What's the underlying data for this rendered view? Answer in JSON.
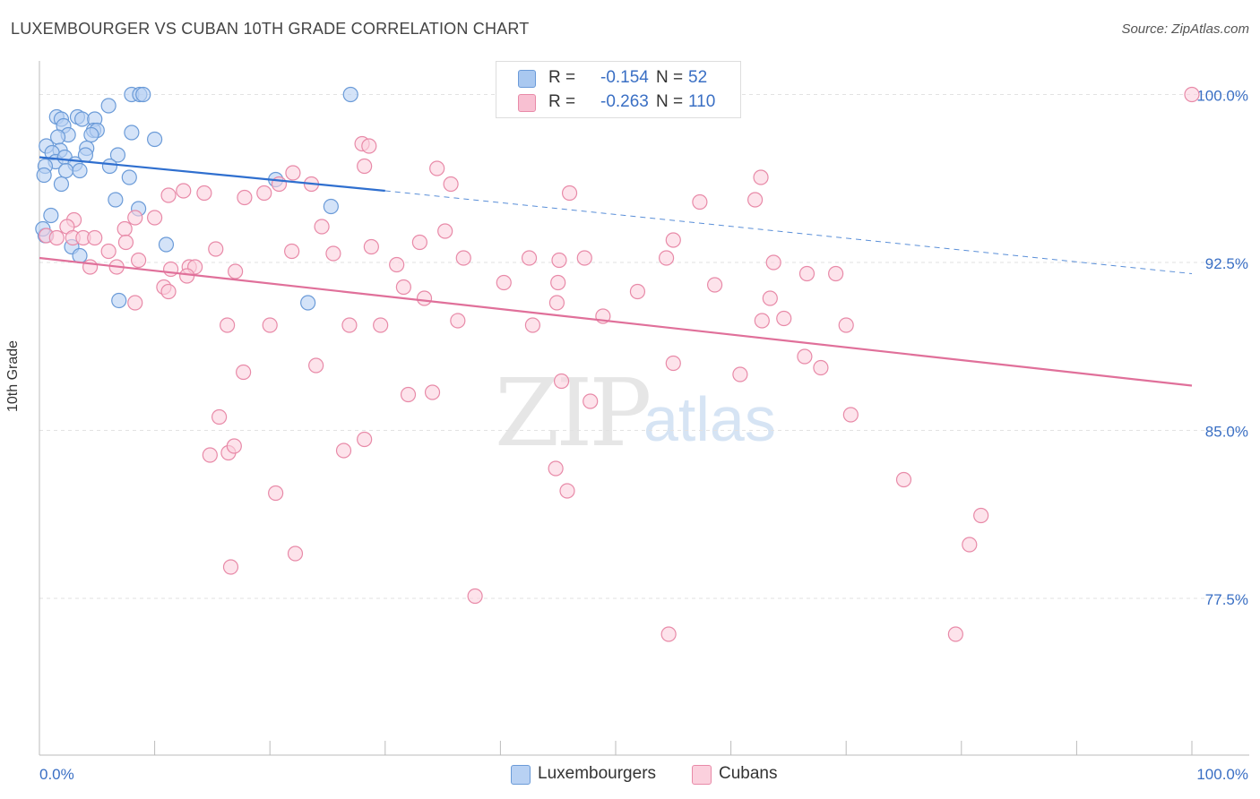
{
  "title": "LUXEMBOURGER VS CUBAN 10TH GRADE CORRELATION CHART",
  "source": "Source: ZipAtlas.com",
  "watermark": {
    "zip": "ZIP",
    "atlas": "atlas"
  },
  "legend": {
    "rows": [
      {
        "r_label": "R =",
        "r_value": "-0.154",
        "n_label": "N =",
        "n_value": "52",
        "color": "#a9c8f0",
        "border": "#6b9bd8"
      },
      {
        "r_label": "R =",
        "r_value": "-0.263",
        "n_label": "N =",
        "n_value": "110",
        "color": "#f8c0d2",
        "border": "#e88aa8"
      }
    ]
  },
  "bottom_legend": [
    {
      "label": "Luxembourgers",
      "color": "#b8d1f3",
      "border": "#6b9bd8"
    },
    {
      "label": "Cubans",
      "color": "#fbd0dd",
      "border": "#e88aa8"
    }
  ],
  "chart_data": {
    "type": "scatter",
    "title": "LUXEMBOURGER VS CUBAN 10TH GRADE CORRELATION CHART",
    "xlabel": "",
    "ylabel": "10th Grade",
    "xlim": [
      0,
      100
    ],
    "ylim": [
      70.5,
      101.5
    ],
    "x_tick_labels": [
      "0.0%",
      "100.0%"
    ],
    "y_ticks": [
      77.5,
      85.0,
      92.5,
      100.0
    ],
    "y_tick_labels": [
      "77.5%",
      "85.0%",
      "92.5%",
      "100.0%"
    ],
    "grid": "horizontal-dashed",
    "series": [
      {
        "name": "Luxembourgers",
        "color": "#6b9bd8",
        "fill": "#b8d1f3",
        "trend": {
          "x0": 0,
          "y0": 97.2,
          "x1": 30,
          "y1": 95.7,
          "dash_to_x": 100,
          "dash_to_y": 92.0
        },
        "points": [
          [
            8.0,
            100.0
          ],
          [
            8.7,
            100.0
          ],
          [
            9.0,
            100.0
          ],
          [
            27.0,
            100.0
          ],
          [
            3.3,
            99.0
          ],
          [
            1.5,
            99.0
          ],
          [
            1.9,
            98.9
          ],
          [
            3.7,
            98.9
          ],
          [
            4.8,
            98.9
          ],
          [
            6.0,
            99.5
          ],
          [
            2.1,
            98.6
          ],
          [
            4.7,
            98.4
          ],
          [
            5.0,
            98.4
          ],
          [
            2.5,
            98.2
          ],
          [
            1.6,
            98.1
          ],
          [
            8.0,
            98.3
          ],
          [
            4.5,
            98.2
          ],
          [
            10.0,
            98.0
          ],
          [
            0.6,
            97.7
          ],
          [
            4.1,
            97.6
          ],
          [
            1.8,
            97.5
          ],
          [
            1.1,
            97.4
          ],
          [
            1.4,
            97.0
          ],
          [
            2.2,
            97.2
          ],
          [
            4.0,
            97.3
          ],
          [
            6.8,
            97.3
          ],
          [
            3.1,
            96.9
          ],
          [
            0.5,
            96.8
          ],
          [
            6.1,
            96.8
          ],
          [
            2.3,
            96.6
          ],
          [
            3.5,
            96.6
          ],
          [
            0.4,
            96.4
          ],
          [
            7.8,
            96.3
          ],
          [
            1.9,
            96.0
          ],
          [
            20.5,
            96.2
          ],
          [
            6.6,
            95.3
          ],
          [
            8.6,
            94.9
          ],
          [
            25.3,
            95.0
          ],
          [
            1.0,
            94.6
          ],
          [
            0.5,
            93.7
          ],
          [
            11.0,
            93.3
          ],
          [
            2.8,
            93.2
          ],
          [
            3.5,
            92.8
          ],
          [
            6.9,
            90.8
          ],
          [
            23.3,
            90.7
          ],
          [
            0.3,
            94.0
          ]
        ]
      },
      {
        "name": "Cubans",
        "color": "#e88aa8",
        "fill": "#fbd0dd",
        "trend": {
          "x0": 0,
          "y0": 92.7,
          "x1": 100,
          "y1": 87.0
        },
        "points": [
          [
            100.0,
            100.0
          ],
          [
            28.0,
            97.8
          ],
          [
            28.6,
            97.7
          ],
          [
            28.2,
            96.8
          ],
          [
            22.0,
            96.5
          ],
          [
            34.5,
            96.7
          ],
          [
            20.8,
            96.0
          ],
          [
            23.6,
            96.0
          ],
          [
            35.7,
            96.0
          ],
          [
            12.5,
            95.7
          ],
          [
            14.3,
            95.6
          ],
          [
            17.8,
            95.4
          ],
          [
            19.5,
            95.6
          ],
          [
            46.0,
            95.6
          ],
          [
            62.6,
            96.3
          ],
          [
            62.1,
            95.3
          ],
          [
            57.3,
            95.2
          ],
          [
            11.2,
            95.5
          ],
          [
            3.0,
            94.4
          ],
          [
            10.0,
            94.5
          ],
          [
            2.4,
            94.1
          ],
          [
            7.4,
            94.0
          ],
          [
            24.5,
            94.1
          ],
          [
            35.2,
            93.9
          ],
          [
            8.3,
            94.5
          ],
          [
            0.6,
            93.7
          ],
          [
            1.5,
            93.6
          ],
          [
            2.9,
            93.6
          ],
          [
            3.8,
            93.6
          ],
          [
            4.8,
            93.6
          ],
          [
            55.0,
            93.5
          ],
          [
            33.0,
            93.4
          ],
          [
            7.5,
            93.4
          ],
          [
            28.8,
            93.2
          ],
          [
            15.3,
            93.1
          ],
          [
            21.9,
            93.0
          ],
          [
            25.5,
            92.9
          ],
          [
            6.0,
            93.0
          ],
          [
            36.8,
            92.7
          ],
          [
            42.5,
            92.7
          ],
          [
            45.1,
            92.6
          ],
          [
            47.3,
            92.7
          ],
          [
            54.4,
            92.7
          ],
          [
            63.7,
            92.5
          ],
          [
            31.0,
            92.4
          ],
          [
            8.6,
            92.6
          ],
          [
            4.4,
            92.3
          ],
          [
            6.7,
            92.3
          ],
          [
            11.4,
            92.2
          ],
          [
            13.0,
            92.3
          ],
          [
            13.5,
            92.3
          ],
          [
            17.0,
            92.1
          ],
          [
            12.8,
            91.9
          ],
          [
            66.6,
            92.0
          ],
          [
            69.1,
            92.0
          ],
          [
            40.3,
            91.6
          ],
          [
            45.0,
            91.6
          ],
          [
            58.6,
            91.5
          ],
          [
            10.8,
            91.4
          ],
          [
            11.2,
            91.2
          ],
          [
            31.6,
            91.4
          ],
          [
            51.9,
            91.2
          ],
          [
            33.4,
            90.9
          ],
          [
            44.9,
            90.7
          ],
          [
            63.4,
            90.9
          ],
          [
            8.3,
            90.7
          ],
          [
            48.9,
            90.1
          ],
          [
            36.3,
            89.9
          ],
          [
            62.7,
            89.9
          ],
          [
            64.6,
            90.0
          ],
          [
            16.3,
            89.7
          ],
          [
            20.0,
            89.7
          ],
          [
            26.9,
            89.7
          ],
          [
            29.6,
            89.7
          ],
          [
            42.8,
            89.7
          ],
          [
            70.0,
            89.7
          ],
          [
            55.0,
            88.0
          ],
          [
            24.0,
            87.9
          ],
          [
            60.8,
            87.5
          ],
          [
            17.7,
            87.6
          ],
          [
            66.4,
            88.3
          ],
          [
            67.8,
            87.8
          ],
          [
            45.3,
            87.2
          ],
          [
            32.0,
            86.6
          ],
          [
            34.1,
            86.7
          ],
          [
            47.8,
            86.3
          ],
          [
            15.6,
            85.6
          ],
          [
            70.4,
            85.7
          ],
          [
            28.2,
            84.6
          ],
          [
            26.4,
            84.1
          ],
          [
            14.8,
            83.9
          ],
          [
            16.4,
            84.0
          ],
          [
            16.9,
            84.3
          ],
          [
            44.8,
            83.3
          ],
          [
            45.8,
            82.3
          ],
          [
            75.0,
            82.8
          ],
          [
            20.5,
            82.2
          ],
          [
            81.7,
            81.2
          ],
          [
            22.2,
            79.5
          ],
          [
            16.6,
            78.9
          ],
          [
            80.7,
            79.9
          ],
          [
            37.8,
            77.6
          ],
          [
            54.6,
            75.9
          ],
          [
            79.5,
            75.9
          ]
        ]
      }
    ]
  }
}
